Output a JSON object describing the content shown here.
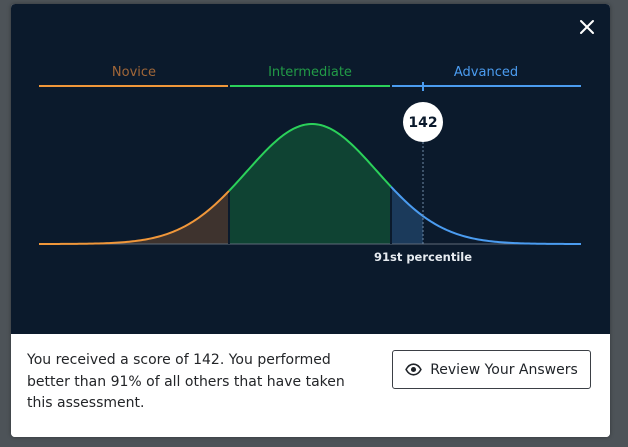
{
  "chart_data": {
    "type": "area",
    "title": "",
    "xlabel": "",
    "ylabel": "",
    "bands": [
      {
        "name": "Novice",
        "color": "#f0973a",
        "fill": "#3e332e"
      },
      {
        "name": "Intermediate",
        "color": "#2bd15a",
        "fill": "#0f4333"
      },
      {
        "name": "Advanced",
        "color": "#4b9cf0",
        "fill": "#1b3a5b"
      }
    ],
    "score": {
      "value": "142",
      "percentile_label": "91st percentile",
      "percentile": 91
    }
  },
  "modal": {
    "close_icon": "close-icon"
  },
  "result": {
    "text": "You received a score of 142. You performed better than 91% of all others that have taken this assessment."
  },
  "review_button": {
    "label": "Review Your Answers",
    "icon": "eye-icon"
  },
  "colors": {
    "panel_background": "#0b1a2c",
    "page_background": "#4d5358",
    "marker": "#ffffff"
  }
}
